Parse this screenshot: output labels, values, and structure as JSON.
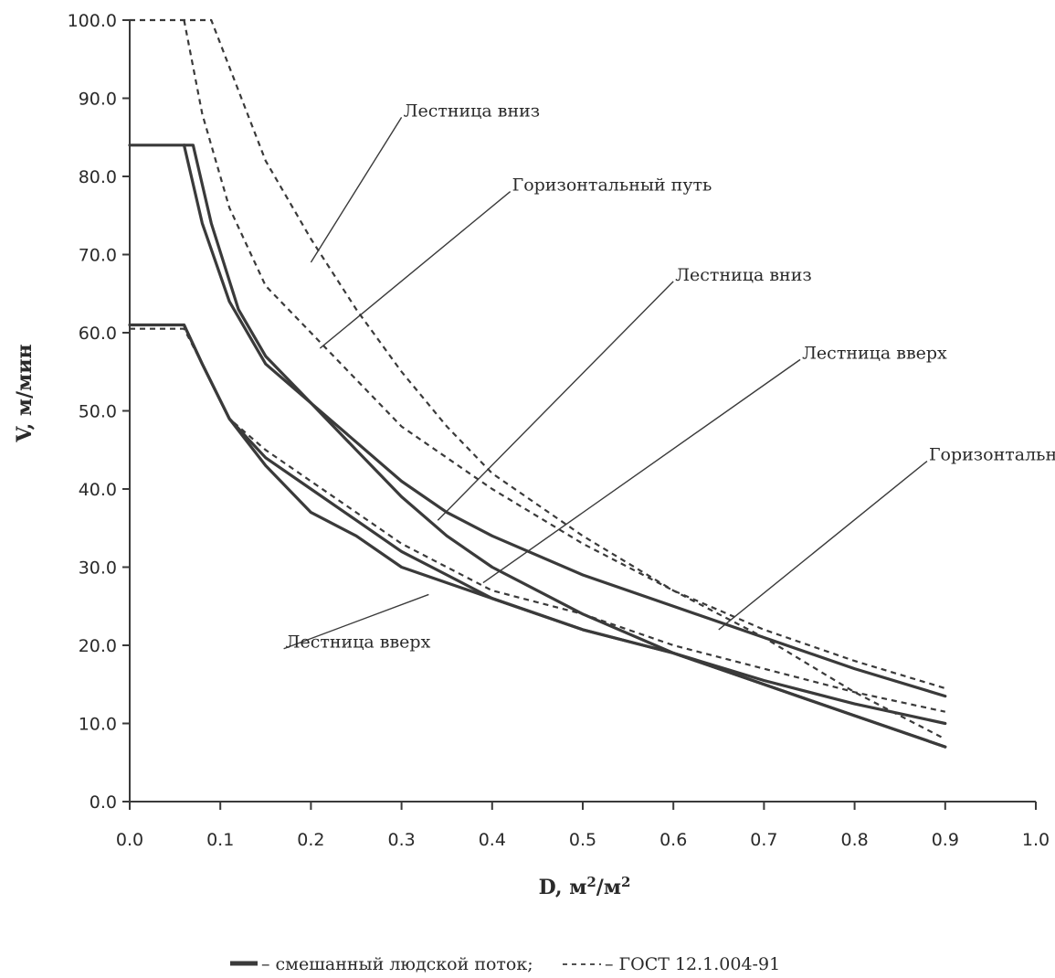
{
  "chart_data": {
    "type": "line",
    "title": "",
    "xlabel": "D, м²/м²",
    "xlabel_main": "D, м",
    "xlabel_sup1": "2",
    "xlabel_mid": "/м",
    "xlabel_sup2": "2",
    "ylabel": "V, м/мин",
    "xlim": [
      0.0,
      1.0
    ],
    "ylim": [
      0.0,
      100.0
    ],
    "x_ticks": [
      "0.0",
      "0.1",
      "0.2",
      "0.3",
      "0.4",
      "0.5",
      "0.6",
      "0.7",
      "0.8",
      "0.9",
      "1.0"
    ],
    "y_ticks": [
      "0.0",
      "10.0",
      "20.0",
      "30.0",
      "40.0",
      "50.0",
      "60.0",
      "70.0",
      "80.0",
      "90.0",
      "100.0"
    ],
    "grid": false,
    "colors": {
      "line": "#3a3a3a",
      "text": "#2a2a2a"
    },
    "series": [
      {
        "style": "solid",
        "points": [
          [
            0.0,
            84
          ],
          [
            0.07,
            84
          ],
          [
            0.09,
            74
          ],
          [
            0.12,
            63
          ],
          [
            0.15,
            57
          ],
          [
            0.2,
            51
          ],
          [
            0.25,
            46
          ],
          [
            0.3,
            41
          ],
          [
            0.35,
            37
          ],
          [
            0.4,
            34
          ],
          [
            0.5,
            29
          ],
          [
            0.6,
            25
          ],
          [
            0.7,
            21
          ],
          [
            0.8,
            17
          ],
          [
            0.9,
            13.5
          ]
        ]
      },
      {
        "style": "solid",
        "points": [
          [
            0.06,
            84
          ],
          [
            0.08,
            74
          ],
          [
            0.11,
            64
          ],
          [
            0.15,
            56
          ],
          [
            0.2,
            51
          ],
          [
            0.25,
            45
          ],
          [
            0.3,
            39
          ],
          [
            0.35,
            34
          ],
          [
            0.4,
            30
          ],
          [
            0.5,
            24
          ],
          [
            0.6,
            19
          ],
          [
            0.7,
            15
          ],
          [
            0.8,
            11
          ],
          [
            0.9,
            7
          ]
        ]
      },
      {
        "style": "solid",
        "points": [
          [
            0.0,
            61
          ],
          [
            0.06,
            61
          ],
          [
            0.08,
            56
          ],
          [
            0.11,
            49
          ],
          [
            0.15,
            43
          ],
          [
            0.2,
            37
          ],
          [
            0.25,
            34
          ],
          [
            0.3,
            30
          ],
          [
            0.35,
            28
          ],
          [
            0.4,
            26
          ],
          [
            0.5,
            22
          ],
          [
            0.6,
            19
          ],
          [
            0.7,
            15.5
          ],
          [
            0.8,
            12.5
          ],
          [
            0.9,
            10
          ]
        ]
      },
      {
        "style": "solid",
        "points": [
          [
            0.06,
            61
          ],
          [
            0.08,
            56
          ],
          [
            0.11,
            49
          ],
          [
            0.15,
            44
          ],
          [
            0.2,
            40
          ],
          [
            0.25,
            36
          ],
          [
            0.3,
            32
          ],
          [
            0.35,
            29
          ],
          [
            0.4,
            26
          ],
          [
            0.5,
            22
          ],
          [
            0.6,
            19
          ],
          [
            0.7,
            15
          ],
          [
            0.8,
            11
          ],
          [
            0.9,
            7
          ]
        ]
      },
      {
        "style": "dashed",
        "points": [
          [
            0.0,
            100
          ],
          [
            0.09,
            100
          ],
          [
            0.11,
            94
          ],
          [
            0.15,
            82
          ],
          [
            0.2,
            72
          ],
          [
            0.25,
            63
          ],
          [
            0.3,
            55
          ],
          [
            0.35,
            48
          ],
          [
            0.4,
            42
          ],
          [
            0.5,
            34
          ],
          [
            0.6,
            27
          ],
          [
            0.7,
            21
          ],
          [
            0.8,
            14
          ],
          [
            0.9,
            8
          ]
        ]
      },
      {
        "style": "dashed",
        "points": [
          [
            0.06,
            100
          ],
          [
            0.08,
            88
          ],
          [
            0.11,
            76
          ],
          [
            0.15,
            66
          ],
          [
            0.2,
            60
          ],
          [
            0.25,
            54
          ],
          [
            0.3,
            48
          ],
          [
            0.35,
            44
          ],
          [
            0.4,
            40
          ],
          [
            0.5,
            33
          ],
          [
            0.6,
            27
          ],
          [
            0.7,
            22
          ],
          [
            0.8,
            18
          ],
          [
            0.9,
            14.5
          ]
        ]
      },
      {
        "style": "dashed",
        "points": [
          [
            0.0,
            60.5
          ],
          [
            0.06,
            60.5
          ],
          [
            0.08,
            56
          ],
          [
            0.11,
            49
          ],
          [
            0.15,
            45
          ],
          [
            0.2,
            41
          ],
          [
            0.25,
            37
          ],
          [
            0.3,
            33
          ],
          [
            0.35,
            30
          ],
          [
            0.4,
            27
          ],
          [
            0.5,
            24
          ],
          [
            0.6,
            20
          ],
          [
            0.7,
            17
          ],
          [
            0.8,
            14
          ],
          [
            0.9,
            11.5
          ]
        ]
      }
    ],
    "annotations": [
      {
        "text": "Лестница вниз",
        "x": 0.3,
        "y": 88.5,
        "target": [
          0.2,
          69
        ]
      },
      {
        "text": "Горизонтальный путь",
        "x": 0.42,
        "y": 79,
        "target": [
          0.21,
          58
        ]
      },
      {
        "text": "Лестница вниз",
        "x": 0.6,
        "y": 67.5,
        "target": [
          0.34,
          36
        ]
      },
      {
        "text": "Лестница вверх",
        "x": 0.74,
        "y": 57.5,
        "target": [
          0.39,
          28
        ]
      },
      {
        "text": "Горизонтальный путь",
        "x": 0.88,
        "y": 44.5,
        "target": [
          0.65,
          22
        ]
      },
      {
        "text": "Лестница вверх",
        "x": 0.17,
        "y": 20.5,
        "target": [
          0.33,
          26.5
        ]
      }
    ],
    "legend": {
      "position": "bottom",
      "solid_text": "– смешанный людской поток;",
      "dashed_text": "– ГОСТ 12.1.004-91"
    }
  }
}
